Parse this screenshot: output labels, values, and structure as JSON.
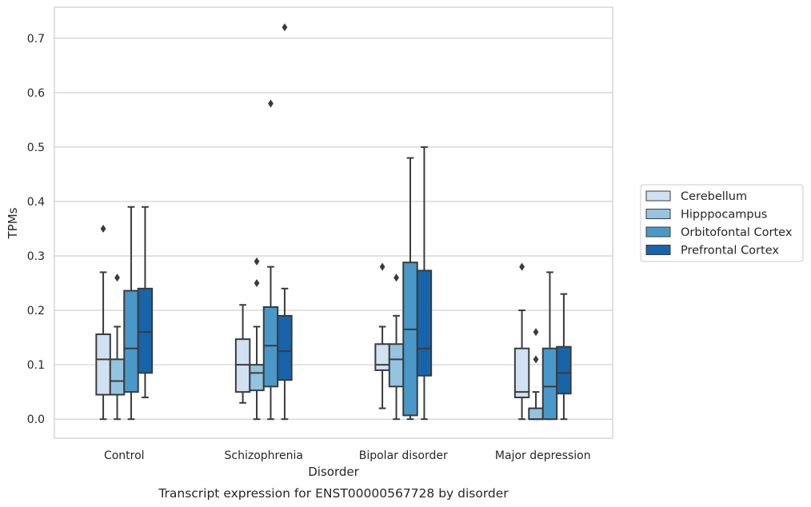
{
  "caption": "Transcript expression for ENST00000567728 by disorder",
  "chart_data": {
    "type": "box",
    "xlabel": "Disorder",
    "ylabel": "TPMs",
    "ylim": [
      -0.035,
      0.757
    ],
    "yticks": [
      "0.0",
      "0.1",
      "0.2",
      "0.3",
      "0.4",
      "0.5",
      "0.6",
      "0.7"
    ],
    "categories": [
      "Control",
      "Schizophrenia",
      "Bipolar disorder",
      "Major depression"
    ],
    "legend_placement": "right, outside plot",
    "grid": "horizontal",
    "series": [
      {
        "name": "Cerebellum",
        "color": "#d0e1f2",
        "boxes": [
          {
            "whislo": 0.0,
            "q1": 0.045,
            "med": 0.11,
            "q3": 0.156,
            "whishi": 0.27,
            "fliers": [
              0.35
            ]
          },
          {
            "whislo": 0.03,
            "q1": 0.05,
            "med": 0.1,
            "q3": 0.147,
            "whishi": 0.21,
            "fliers": []
          },
          {
            "whislo": 0.02,
            "q1": 0.09,
            "med": 0.1,
            "q3": 0.138,
            "whishi": 0.17,
            "fliers": [
              0.28
            ]
          },
          {
            "whislo": 0.0,
            "q1": 0.04,
            "med": 0.05,
            "q3": 0.13,
            "whishi": 0.2,
            "fliers": [
              0.28
            ]
          }
        ]
      },
      {
        "name": "Hipppocampus",
        "color": "#94c4df",
        "boxes": [
          {
            "whislo": 0.0,
            "q1": 0.045,
            "med": 0.07,
            "q3": 0.11,
            "whishi": 0.17,
            "fliers": [
              0.26
            ]
          },
          {
            "whislo": 0.0,
            "q1": 0.053,
            "med": 0.085,
            "q3": 0.1,
            "whishi": 0.17,
            "fliers": [
              0.25,
              0.29
            ]
          },
          {
            "whislo": 0.0,
            "q1": 0.06,
            "med": 0.11,
            "q3": 0.138,
            "whishi": 0.19,
            "fliers": [
              0.26
            ]
          },
          {
            "whislo": 0.0,
            "q1": 0.0,
            "med": 0.0,
            "q3": 0.02,
            "whishi": 0.05,
            "fliers": [
              0.11,
              0.16
            ]
          }
        ]
      },
      {
        "name": "Orbitofontal Cortex",
        "color": "#4a98c9",
        "boxes": [
          {
            "whislo": 0.0,
            "q1": 0.05,
            "med": 0.13,
            "q3": 0.236,
            "whishi": 0.39,
            "fliers": []
          },
          {
            "whislo": 0.0,
            "q1": 0.06,
            "med": 0.135,
            "q3": 0.206,
            "whishi": 0.28,
            "fliers": [
              0.58
            ]
          },
          {
            "whislo": 0.0,
            "q1": 0.007,
            "med": 0.165,
            "q3": 0.288,
            "whishi": 0.48,
            "fliers": []
          },
          {
            "whislo": 0.0,
            "q1": 0.0,
            "med": 0.06,
            "q3": 0.13,
            "whishi": 0.27,
            "fliers": []
          }
        ]
      },
      {
        "name": "Prefrontal Cortex",
        "color": "#1764ab",
        "boxes": [
          {
            "whislo": 0.04,
            "q1": 0.085,
            "med": 0.16,
            "q3": 0.24,
            "whishi": 0.39,
            "fliers": []
          },
          {
            "whislo": 0.0,
            "q1": 0.072,
            "med": 0.125,
            "q3": 0.19,
            "whishi": 0.24,
            "fliers": [
              0.72
            ]
          },
          {
            "whislo": 0.0,
            "q1": 0.08,
            "med": 0.13,
            "q3": 0.273,
            "whishi": 0.5,
            "fliers": []
          },
          {
            "whislo": 0.0,
            "q1": 0.047,
            "med": 0.085,
            "q3": 0.133,
            "whishi": 0.23,
            "fliers": []
          }
        ]
      }
    ]
  }
}
